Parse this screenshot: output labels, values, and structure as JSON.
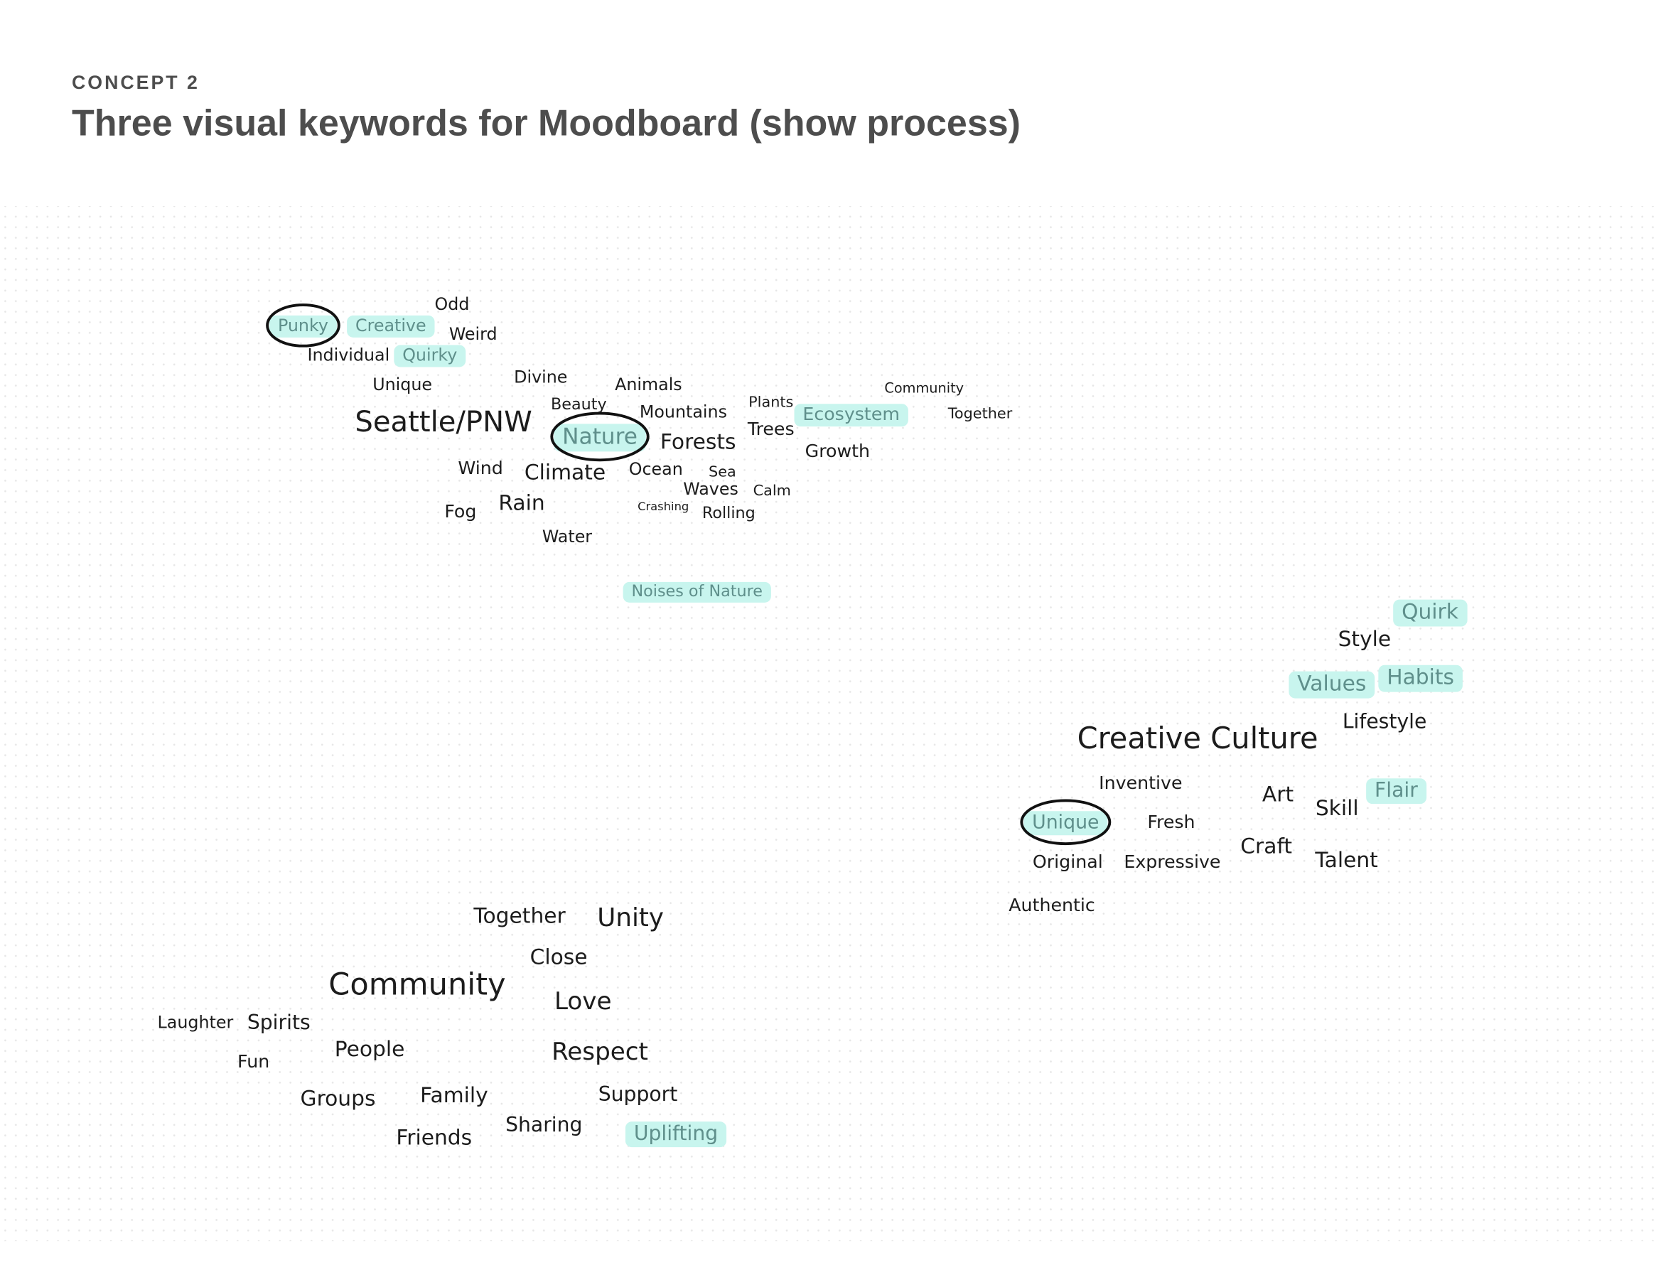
{
  "header": {
    "eyebrow": "CONCEPT 2",
    "title": "Three visual keywords for Moodboard (show process)"
  },
  "clusters": [
    {
      "words": [
        "Punky",
        "Creative",
        "Odd",
        "Weird",
        "Individual",
        "Quirky",
        "Unique",
        "Divine",
        "Animals",
        "Beauty",
        "Mountains",
        "Plants",
        "Community",
        "Together",
        "Seattle/PNW",
        "Nature",
        "Forests",
        "Trees",
        "Ecosystem",
        "Growth",
        "Wind",
        "Climate",
        "Ocean",
        "Sea",
        "Waves",
        "Calm",
        "Rain",
        "Fog",
        "Crashing",
        "Rolling",
        "Water",
        "Noises of Nature"
      ]
    },
    {
      "words": [
        "Quirk",
        "Style",
        "Values",
        "Habits",
        "Lifestyle",
        "Creative Culture",
        "Inventive",
        "Art",
        "Skill",
        "Flair",
        "Unique",
        "Fresh",
        "Craft",
        "Original",
        "Expressive",
        "Talent",
        "Authentic"
      ]
    },
    {
      "words": [
        "Together",
        "Unity",
        "Close",
        "Community",
        "Love",
        "Laughter",
        "Spirits",
        "People",
        "Respect",
        "Fun",
        "Groups",
        "Family",
        "Support",
        "Sharing",
        "Uplifting",
        "Friends"
      ]
    }
  ]
}
